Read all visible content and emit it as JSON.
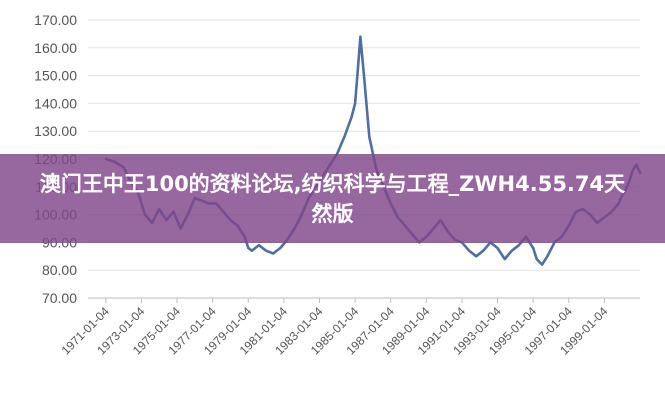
{
  "banner": {
    "text": "澳门王中王100的资料论坛,纺织科学与工程_ZWH4.55.74天然版"
  },
  "colors": {
    "line": "#4f6fa3",
    "grid": "#e3e3e3",
    "axis": "#bdbdbd",
    "banner": "#80468a"
  },
  "chart_data": {
    "type": "line",
    "title": "",
    "xlabel": "",
    "ylabel": "",
    "ylim": [
      70,
      170
    ],
    "grid": "horizontal",
    "legend": "none",
    "y_ticks": [
      "70.00",
      "80.00",
      "90.00",
      "100.00",
      "110.00",
      "120.00",
      "130.00",
      "140.00",
      "150.00",
      "160.00",
      "170.00"
    ],
    "x_ticks": [
      "1971-01-04",
      "1973-01-04",
      "1975-01-04",
      "1977-01-04",
      "1979-01-04",
      "1981-01-04",
      "1983-01-04",
      "1985-01-04",
      "1987-01-04",
      "1989-01-04",
      "1991-01-04",
      "1993-01-04",
      "1995-01-04",
      "1997-01-04",
      "1999-01-04"
    ],
    "series": [
      {
        "x": [
          1971.0,
          1971.5,
          1972.0,
          1972.4,
          1972.8,
          1973.2,
          1973.6,
          1974.0,
          1974.4,
          1974.8,
          1975.2,
          1975.6,
          1976.0,
          1976.4,
          1976.8,
          1977.2,
          1977.6,
          1978.0,
          1978.4,
          1978.8,
          1979.0,
          1979.2,
          1979.6,
          1980.0,
          1980.4,
          1980.8,
          1981.2,
          1981.6,
          1982.0,
          1982.4,
          1982.8,
          1983.2,
          1983.6,
          1984.0,
          1984.4,
          1984.8,
          1985.0,
          1985.15,
          1985.3,
          1985.5,
          1985.8,
          1986.2,
          1986.6,
          1987.0,
          1987.4,
          1987.8,
          1988.2,
          1988.6,
          1989.0,
          1989.4,
          1989.8,
          1990.2,
          1990.6,
          1991.0,
          1991.4,
          1991.8,
          1992.2,
          1992.6,
          1993.0,
          1993.4,
          1993.8,
          1994.2,
          1994.6,
          1995.0,
          1995.2,
          1995.5,
          1995.8,
          1996.2,
          1996.6,
          1997.0,
          1997.4,
          1997.8,
          1998.2,
          1998.6,
          1999.0,
          1999.4,
          1999.8,
          2000.0,
          2000.2,
          2000.4,
          2000.6,
          2000.8,
          2001.0
        ],
        "y": [
          120,
          119,
          117,
          112,
          108,
          100,
          97,
          102,
          98,
          101,
          95,
          100,
          106,
          105,
          104,
          104,
          101,
          98,
          96,
          92,
          88,
          87,
          89,
          87,
          86,
          88,
          91,
          95,
          100,
          106,
          110,
          114,
          118,
          122,
          128,
          135,
          140,
          152,
          164,
          150,
          128,
          116,
          110,
          104,
          99,
          96,
          93,
          90,
          92,
          95,
          98,
          94,
          91,
          90,
          87,
          85,
          87,
          90,
          88,
          84,
          87,
          89,
          92,
          88,
          84,
          82,
          85,
          90,
          92,
          96,
          101,
          102,
          100,
          97,
          99,
          101,
          104,
          107,
          109,
          112,
          116,
          118,
          115
        ]
      }
    ]
  }
}
